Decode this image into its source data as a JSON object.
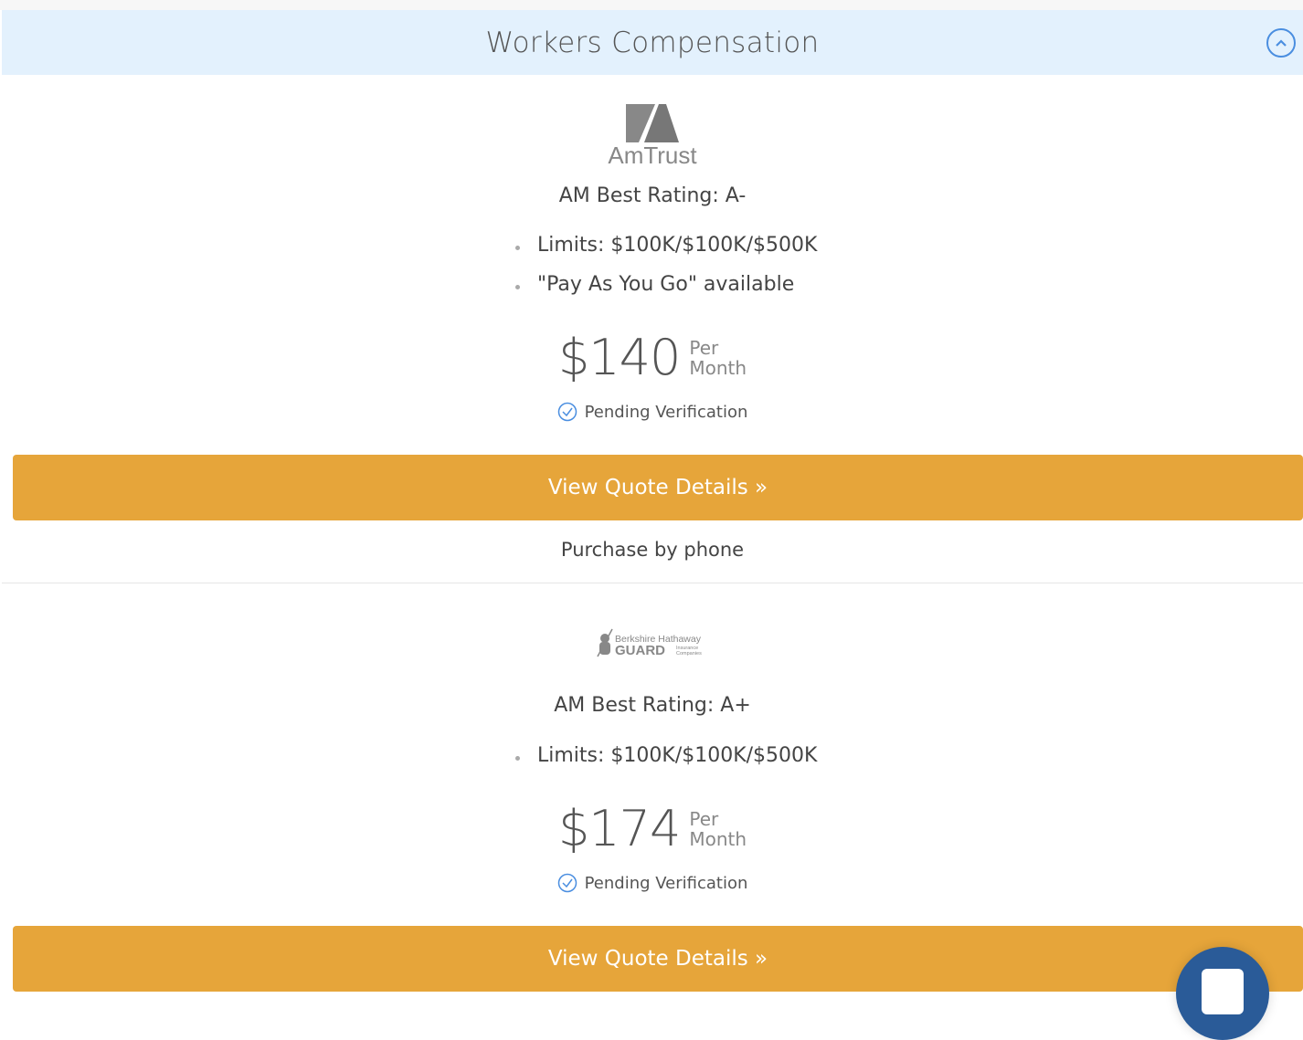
{
  "section": {
    "title": "Workers Compensation",
    "collapse_icon": "chevron-up-circle-icon",
    "accent": "#4a8ee0",
    "header_bg": "#e3f1fd"
  },
  "quotes": [
    {
      "carrier": "AmTrust",
      "logo_text": "AmTrust",
      "rating": "AM Best Rating: A-",
      "bullets": [
        "Limits: $100K/$100K/$500K",
        "\"Pay As You Go\" available"
      ],
      "price": "$140",
      "per": "Per",
      "period": "Month",
      "status": "Pending Verification",
      "button": "View Quote Details »",
      "purchase": "Purchase by phone"
    },
    {
      "carrier": "Berkshire Hathaway GUARD",
      "logo_text": "Berkshire Hathaway GUARD Insurance Companies",
      "logo_line1": "Berkshire Hathaway",
      "logo_line2": "GUARD",
      "logo_line3a": "Insurance",
      "logo_line3b": "Companies",
      "rating": "AM Best Rating: A+",
      "bullets": [
        "Limits: $100K/$100K/$500K"
      ],
      "price": "$174",
      "per": "Per",
      "period": "Month",
      "status": "Pending Verification",
      "button": "View Quote Details »"
    }
  ],
  "button_color": "#e6a53a",
  "chat_color": "#2a5b98"
}
